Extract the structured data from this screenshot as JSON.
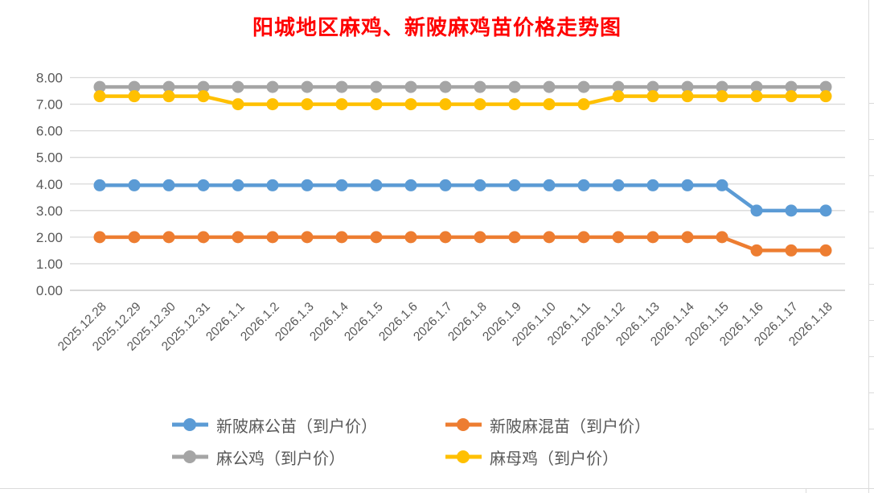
{
  "title": "阳城地区麻鸡、新陂麻鸡苗价格走势图",
  "chart_data": {
    "type": "line",
    "title": "阳城地区麻鸡、新陂麻鸡苗价格走势图",
    "title_color": "#ff0000",
    "categories": [
      "2025.12.28",
      "2025.12.29",
      "2025.12.30",
      "2025.12.31",
      "2026.1.1",
      "2026.1.2",
      "2026.1.3",
      "2026.1.4",
      "2026.1.5",
      "2026.1.6",
      "2026.1.7",
      "2026.1.8",
      "2026.1.9",
      "2026.1.10",
      "2026.1.11",
      "2026.1.12",
      "2026.1.13",
      "2026.1.14",
      "2026.1.15",
      "2026.1.16",
      "2026.1.17",
      "2026.1.18"
    ],
    "series": [
      {
        "name": "新陂麻公苗（到户价）",
        "color": "#5B9BD5",
        "values": [
          3.95,
          3.95,
          3.95,
          3.95,
          3.95,
          3.95,
          3.95,
          3.95,
          3.95,
          3.95,
          3.95,
          3.95,
          3.95,
          3.95,
          3.95,
          3.95,
          3.95,
          3.95,
          3.95,
          3.0,
          3.0,
          3.0
        ]
      },
      {
        "name": "新陂麻混苗（到户价）",
        "color": "#ED7D31",
        "values": [
          2.0,
          2.0,
          2.0,
          2.0,
          2.0,
          2.0,
          2.0,
          2.0,
          2.0,
          2.0,
          2.0,
          2.0,
          2.0,
          2.0,
          2.0,
          2.0,
          2.0,
          2.0,
          2.0,
          1.5,
          1.5,
          1.5
        ]
      },
      {
        "name": "麻公鸡（到户价）",
        "color": "#A5A5A5",
        "values": [
          7.65,
          7.65,
          7.65,
          7.65,
          7.65,
          7.65,
          7.65,
          7.65,
          7.65,
          7.65,
          7.65,
          7.65,
          7.65,
          7.65,
          7.65,
          7.65,
          7.65,
          7.65,
          7.65,
          7.65,
          7.65,
          7.65
        ]
      },
      {
        "name": "麻母鸡（到户价）",
        "color": "#FFC000",
        "values": [
          7.3,
          7.3,
          7.3,
          7.3,
          7.0,
          7.0,
          7.0,
          7.0,
          7.0,
          7.0,
          7.0,
          7.0,
          7.0,
          7.0,
          7.0,
          7.3,
          7.3,
          7.3,
          7.3,
          7.3,
          7.3,
          7.3
        ]
      }
    ],
    "ylim": [
      0,
      8
    ],
    "ytick_labels": [
      "0.00",
      "1.00",
      "2.00",
      "3.00",
      "4.00",
      "5.00",
      "6.00",
      "7.00",
      "8.00"
    ],
    "grid": true,
    "gridline_color": "#D9D9D9",
    "axis_label_color": "#595959",
    "legend_position": "bottom"
  }
}
